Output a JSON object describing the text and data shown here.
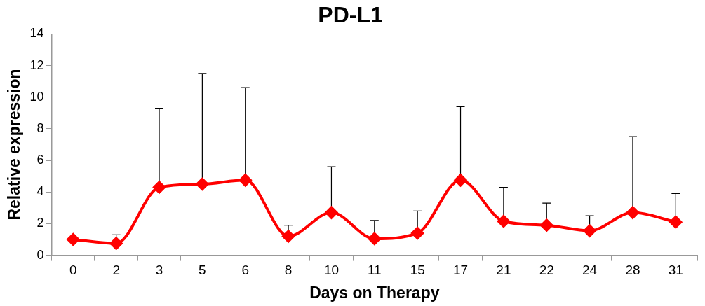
{
  "chart_data": {
    "type": "line",
    "title": "PD-L1",
    "xlabel": "Days on Therapy",
    "ylabel": "Relative expression",
    "categories": [
      "0",
      "2",
      "3",
      "5",
      "6",
      "8",
      "10",
      "11",
      "15",
      "17",
      "21",
      "22",
      "24",
      "28",
      "31"
    ],
    "series": [
      {
        "color": "#ff0000",
        "values": [
          1.0,
          0.75,
          4.3,
          4.5,
          4.75,
          1.2,
          2.7,
          1.05,
          1.4,
          4.75,
          2.15,
          1.9,
          1.55,
          2.7,
          2.1
        ],
        "errors": [
          null,
          [
            0.75,
            1.3
          ],
          [
            4.3,
            9.3
          ],
          [
            4.5,
            11.5
          ],
          [
            4.75,
            10.6
          ],
          [
            1.2,
            1.9
          ],
          [
            2.7,
            5.6
          ],
          [
            1.05,
            2.2
          ],
          [
            1.4,
            2.8
          ],
          [
            4.75,
            9.4
          ],
          [
            2.15,
            4.3
          ],
          [
            1.9,
            3.3
          ],
          [
            1.55,
            2.5
          ],
          [
            2.7,
            7.5
          ],
          [
            2.1,
            3.9
          ]
        ]
      }
    ],
    "ylim": [
      0,
      14
    ],
    "yticks": [
      0,
      2,
      4,
      6,
      8,
      10,
      12,
      14
    ],
    "grid": false,
    "legend": false,
    "marker": "diamond",
    "line_style": "solid"
  }
}
